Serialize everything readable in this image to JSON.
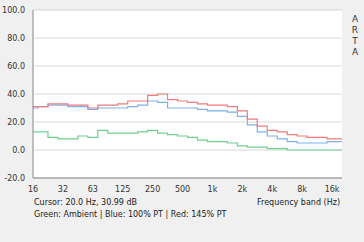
{
  "chart_data": {
    "type": "line",
    "x_label": "Frequency band (Hz)",
    "annotations": [
      "Cursor: 20.0 Hz, 30.99 dB",
      "Green: Ambient | Blue: 100% PT | Red: 145% PT",
      "ARTA"
    ],
    "categories": [
      "16",
      null,
      null,
      "32",
      null,
      null,
      "63",
      null,
      null,
      "125",
      null,
      null,
      "250",
      null,
      null,
      "500",
      null,
      null,
      "1k",
      null,
      null,
      "2k",
      null,
      null,
      "4k",
      null,
      null,
      "8k",
      null,
      null,
      "16k",
      null
    ],
    "series": [
      {
        "name": "Ambient",
        "color": "#6fcf8f",
        "line_style": "step",
        "values": [
          13,
          13,
          9,
          8,
          8,
          10,
          9,
          14,
          12,
          12,
          12,
          13,
          14,
          12,
          11,
          10,
          9,
          7,
          6,
          6,
          5,
          3,
          2,
          2,
          1,
          1,
          0,
          0,
          0,
          0,
          0,
          0
        ]
      },
      {
        "name": "100% PT",
        "color": "#7fb0ea",
        "line_style": "step",
        "values": [
          30,
          31,
          32,
          32,
          31,
          31,
          29,
          30,
          30,
          30,
          31,
          32,
          35,
          34,
          30,
          30,
          30,
          29,
          28,
          28,
          27,
          24,
          18,
          13,
          10,
          8,
          6,
          5,
          5,
          5,
          6,
          6
        ]
      },
      {
        "name": "145% PT",
        "color": "#ef7b7b",
        "line_style": "step",
        "values": [
          31,
          31,
          33,
          33,
          32,
          32,
          30,
          32,
          32,
          33,
          35,
          35,
          39,
          40,
          36,
          35,
          34,
          33,
          32,
          32,
          31,
          28,
          22,
          17,
          14,
          13,
          11,
          10,
          9,
          9,
          8,
          8
        ]
      }
    ],
    "ylim": [
      -20,
      100
    ],
    "yticks": [
      {
        "value": -20,
        "label": "-20.0"
      },
      {
        "value": 0,
        "label": "0.0"
      },
      {
        "value": 20,
        "label": "20.0"
      },
      {
        "value": 40,
        "label": "40.0"
      },
      {
        "value": 60,
        "label": "60.0"
      },
      {
        "value": 80,
        "label": "80.0"
      },
      {
        "value": 100,
        "label": "100.0"
      }
    ],
    "grid": true
  }
}
